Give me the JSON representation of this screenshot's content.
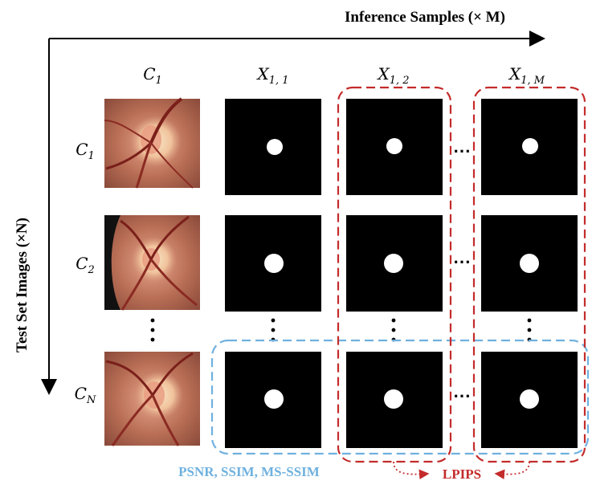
{
  "axes": {
    "horizontal_title": "Inference  Samples (× M)",
    "vertical_title": "Test Set Images (×N)"
  },
  "column_headers": [
    {
      "base": "C",
      "sub": "1"
    },
    {
      "base": "X",
      "sub": "1, 1"
    },
    {
      "base": "X",
      "sub": "1, 2"
    },
    {
      "base": "X",
      "sub": "1, M"
    }
  ],
  "row_labels": [
    {
      "base": "C",
      "sub": "1"
    },
    {
      "base": "C",
      "sub": "2"
    },
    {
      "base": "C",
      "sub": "N"
    }
  ],
  "ellipsis": "⋯",
  "metrics": {
    "blue_label": "PSNR,  SSIM,  MS-SSIM",
    "red_label": "LPIPS"
  },
  "colors": {
    "blue": "#6fb1df",
    "red": "#c42b2b",
    "blue_text": "#6fb1df",
    "red_text": "#c42b2b",
    "mask_bg": "#000000",
    "mask_disc": "#ffffff",
    "retina": "#b66a4e"
  }
}
